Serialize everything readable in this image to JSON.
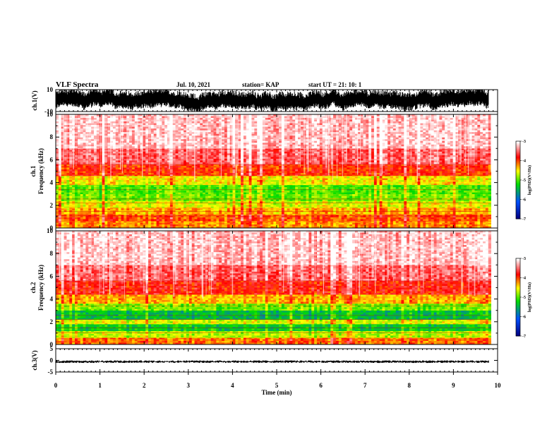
{
  "header": {
    "title": "VLF Spectra",
    "date": "Jul. 10, 2021",
    "station": "station= KAP",
    "start": "start UT =  21: 10: 1"
  },
  "chart_data": [
    {
      "type": "line",
      "panel": "ch1-waveform",
      "ylabel": "ch.1(V)",
      "ylim": [
        -10,
        10
      ],
      "yticklabels": [
        "10",
        "-10"
      ],
      "xlim": [
        0,
        10
      ],
      "trace_min_max": [
        -10,
        10
      ]
    },
    {
      "type": "heatmap",
      "panel": "ch1-spectrogram",
      "ylabel": "ch.1\nFrequency (kHz)",
      "ylabel_line1": "ch.1",
      "ylabel_line2": "Frequency (kHz)",
      "ylim": [
        0,
        10
      ],
      "yticklabels": [
        "0",
        "2",
        "4",
        "6",
        "8",
        "10"
      ],
      "xlim": [
        0,
        9.85
      ],
      "colorbar": {
        "label": "log(PSD)(V²/Hz)",
        "range": [
          -7,
          -3
        ],
        "ticklabels": [
          "-3",
          "-4",
          "-5",
          "-6",
          "-7"
        ]
      },
      "bands": [
        {
          "freq_khz": [
            0,
            0.6
          ],
          "level": -4.2
        },
        {
          "freq_khz": [
            0.6,
            1.2
          ],
          "level": -4.0
        },
        {
          "freq_khz": [
            1.2,
            1.8
          ],
          "level": -4.3
        },
        {
          "freq_khz": [
            1.8,
            2.4
          ],
          "level": -4.6
        },
        {
          "freq_khz": [
            2.4,
            3.0
          ],
          "level": -4.9
        },
        {
          "freq_khz": [
            3.0,
            3.8
          ],
          "level": -5.0
        },
        {
          "freq_khz": [
            3.8,
            4.6
          ],
          "level": -4.5
        },
        {
          "freq_khz": [
            4.6,
            5.6
          ],
          "level": -3.9
        },
        {
          "freq_khz": [
            5.6,
            7.0
          ],
          "level": -3.5
        },
        {
          "freq_khz": [
            7.0,
            10.0
          ],
          "level": -3.2
        }
      ]
    },
    {
      "type": "heatmap",
      "panel": "ch2-spectrogram",
      "ylabel": "ch.2\nFrequency (kHz)",
      "ylabel_line1": "ch.2",
      "ylabel_line2": "Frequency (kHz)",
      "ylim": [
        0,
        10
      ],
      "yticklabels": [
        "0",
        "2",
        "4",
        "6",
        "8",
        "10"
      ],
      "xlim": [
        0,
        9.85
      ],
      "colorbar": {
        "label": "log(PSD)(V²/Hz)",
        "range": [
          -7,
          -3
        ],
        "ticklabels": [
          "-3",
          "-4",
          "-5",
          "-6",
          "-7"
        ]
      },
      "bands": [
        {
          "freq_khz": [
            0,
            0.6
          ],
          "level": -4.1
        },
        {
          "freq_khz": [
            0.6,
            1.2
          ],
          "level": -4.7
        },
        {
          "freq_khz": [
            1.2,
            1.8
          ],
          "level": -5.3
        },
        {
          "freq_khz": [
            1.8,
            2.2
          ],
          "level": -4.6
        },
        {
          "freq_khz": [
            2.2,
            3.0
          ],
          "level": -5.4
        },
        {
          "freq_khz": [
            3.0,
            3.6
          ],
          "level": -4.9
        },
        {
          "freq_khz": [
            3.6,
            4.4
          ],
          "level": -4.3
        },
        {
          "freq_khz": [
            4.4,
            5.6
          ],
          "level": -3.8
        },
        {
          "freq_khz": [
            5.6,
            7.0
          ],
          "level": -3.5
        },
        {
          "freq_khz": [
            7.0,
            10.0
          ],
          "level": -3.2
        }
      ]
    },
    {
      "type": "line",
      "panel": "ch3-waveform",
      "ylabel": "ch.3(V)",
      "ylim": [
        -5,
        5
      ],
      "yticklabels": [
        "5",
        "0",
        "-5"
      ],
      "xlim": [
        0,
        10
      ],
      "trace_level": -0.5
    }
  ],
  "xaxis": {
    "label": "Time (min)",
    "ticks": [
      0,
      1,
      2,
      3,
      4,
      5,
      6,
      7,
      8,
      9,
      10
    ],
    "ticklabels": [
      "0",
      "1",
      "2",
      "3",
      "4",
      "5",
      "6",
      "7",
      "8",
      "9",
      "10"
    ]
  },
  "colors": {
    "low": "#000080",
    "mid_low": "#0050ff",
    "mid": "#00e000",
    "mid_high": "#ffff00",
    "high": "#ff0000",
    "top": "#ffffff"
  }
}
